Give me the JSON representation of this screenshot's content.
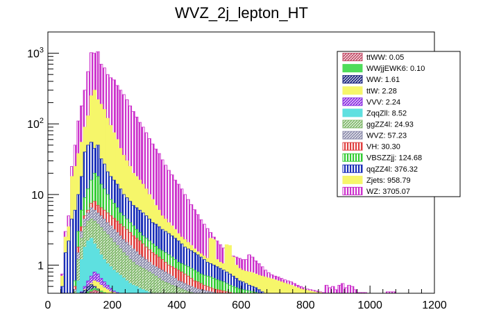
{
  "chart_data": {
    "type": "bar",
    "stacked": true,
    "histogram": true,
    "title": "WVZ_2j_lepton_HT",
    "xlabel": "",
    "ylabel": "",
    "xlim": [
      0,
      1200
    ],
    "ylim": [
      0.4,
      2000
    ],
    "ylog": true,
    "bin_width": 10,
    "legend_position": "top-right",
    "xticks": [
      "0",
      "200",
      "400",
      "600",
      "800",
      "1000",
      "1200"
    ],
    "yticks": [
      {
        "value": 1,
        "label": "1"
      },
      {
        "value": 10,
        "label": "10"
      },
      {
        "value": 100,
        "label": "10^2"
      },
      {
        "value": 1000,
        "label": "10^3"
      }
    ],
    "legend": [
      {
        "label": "ttWW: 0.05",
        "color": "#c44e6a",
        "pattern": "hatch"
      },
      {
        "label": "WWjjEWK6: 0.10",
        "color": "#4fdc5a",
        "pattern": "solid"
      },
      {
        "label": "WW: 1.61",
        "color": "#1a237e",
        "pattern": "hatch"
      },
      {
        "label": "ttW: 2.28",
        "color": "#f6f66a",
        "pattern": "solid"
      },
      {
        "label": "VVV: 2.24",
        "color": "#8a2be2",
        "pattern": "hatch"
      },
      {
        "label": "ZqqZll: 8.52",
        "color": "#5ee0e0",
        "pattern": "solid"
      },
      {
        "label": "ggZZ4l: 24.93",
        "color": "#7fb86a",
        "pattern": "hatch"
      },
      {
        "label": "WVZ: 57.23",
        "color": "#8c8cac",
        "pattern": "hatch"
      },
      {
        "label": "VH: 30.30",
        "color": "#e04040",
        "pattern": "vlines"
      },
      {
        "label": "VBSZZjj: 124.68",
        "color": "#33cc33",
        "pattern": "vlines"
      },
      {
        "label": "qqZZ4l: 376.32",
        "color": "#1a2fb8",
        "pattern": "vlines"
      },
      {
        "label": "Zjets: 958.79",
        "color": "#f6f66a",
        "pattern": "solid"
      },
      {
        "label": "WZ: 3705.07",
        "color": "#cc33cc",
        "pattern": "vlines"
      }
    ],
    "series": [
      {
        "name": "WZ",
        "color": "#cc33cc",
        "pattern": "vlines",
        "x": [
          40,
          50,
          60,
          70,
          80,
          90,
          100,
          110,
          120,
          130,
          140,
          150,
          160,
          170,
          180,
          190,
          200,
          210,
          220,
          230,
          240,
          250,
          260,
          270,
          280,
          290,
          300,
          310,
          320,
          330,
          340,
          350,
          360,
          370,
          380,
          390,
          400,
          410,
          420,
          430,
          440,
          450,
          460,
          470,
          480,
          490,
          500,
          510,
          520,
          530,
          540,
          550,
          560,
          570,
          580,
          590,
          600,
          610,
          620,
          630,
          640,
          650,
          660,
          670,
          680,
          690,
          700,
          710,
          720,
          730,
          740,
          750,
          760,
          770,
          780,
          790,
          800,
          810,
          820,
          830,
          840,
          850,
          860,
          870,
          880,
          890,
          900,
          910,
          920,
          930,
          940,
          950,
          960,
          970,
          980,
          990,
          1000,
          1010,
          1020,
          1030,
          1040,
          1050,
          1060,
          1070,
          1080
        ],
        "values": [
          0.75,
          3,
          5,
          25,
          50,
          110,
          180,
          300,
          550,
          1020,
          1000,
          1050,
          700,
          620,
          500,
          450,
          420,
          350,
          300,
          260,
          220,
          180,
          150,
          125,
          105,
          90,
          75,
          62,
          52,
          44,
          38,
          31,
          26,
          22,
          19,
          16,
          14,
          12,
          10,
          8.5,
          7.2,
          6.1,
          5.2,
          4.4,
          3.8,
          3.3,
          2.9,
          2.5,
          2.2,
          1.95,
          1.75,
          1.55,
          1.45,
          1.35,
          1.3,
          1.25,
          1.2,
          1.2,
          1.4,
          1.3,
          1.15,
          1.05,
          0.95,
          0.85,
          0.78,
          0.73,
          0.7,
          0.68,
          0.65,
          0.62,
          0.6,
          0.58,
          0.55,
          0.52,
          0.5,
          0.48,
          0.46,
          0.45,
          0.44,
          0.43,
          0.42,
          0.41,
          0.52,
          0.48,
          0.5,
          0.45,
          0.52,
          0.55,
          0.48,
          0.52,
          0.5,
          0.45,
          0.41,
          0.41,
          0.41,
          0,
          0,
          0,
          0.4,
          0,
          0,
          0.42,
          0.42,
          0.42,
          0
        ]
      },
      {
        "name": "Zjets",
        "color": "#f6f66a",
        "pattern": "solid",
        "x": [
          40,
          50,
          60,
          70,
          80,
          90,
          100,
          110,
          120,
          130,
          140,
          150,
          160,
          170,
          180,
          190,
          200,
          210,
          220,
          230,
          240,
          250,
          260,
          270,
          280,
          290,
          300,
          310,
          320,
          330,
          340,
          350,
          360,
          370,
          380,
          390,
          400,
          410,
          420,
          430,
          440,
          450,
          460,
          470,
          480,
          490,
          500,
          510,
          520,
          530,
          540,
          550,
          560,
          570,
          580,
          590,
          600,
          610,
          620,
          630,
          640,
          650,
          660,
          670,
          680,
          690,
          700,
          710,
          720,
          730,
          740,
          750,
          760,
          770,
          780,
          790,
          800,
          810,
          820,
          830,
          840,
          850,
          860,
          870
        ],
        "values": [
          0.7,
          2.5,
          3.5,
          18,
          25,
          38,
          55,
          90,
          130,
          250,
          300,
          220,
          190,
          160,
          120,
          95,
          75,
          60,
          45,
          36,
          30,
          25,
          20,
          18,
          16,
          14,
          12,
          10,
          8.5,
          7,
          6,
          5,
          4.5,
          4,
          3.6,
          3.2,
          2.8,
          2.5,
          2.3,
          2.1,
          1.9,
          1.7,
          1.55,
          1.45,
          1.35,
          1.25,
          2.4,
          2.3,
          1.2,
          1.1,
          1.05,
          1.95,
          1.9,
          1.3,
          1.0,
          0.9,
          0.85,
          0.82,
          0.8,
          0.78,
          0.75,
          0.72,
          0.7,
          0.68,
          0.66,
          0.64,
          0.62,
          0.6,
          0.58,
          0.56,
          0.54,
          0.52,
          0.5,
          0.48,
          0.46,
          0.45,
          0.44,
          0.43,
          0.42,
          0.41,
          0.41,
          0.4,
          0.4,
          0
        ]
      },
      {
        "name": "qqZZ4l",
        "color": "#1a2fb8",
        "pattern": "vlines",
        "x": [
          40,
          50,
          60,
          70,
          80,
          90,
          100,
          110,
          120,
          130,
          140,
          150,
          160,
          170,
          180,
          190,
          200,
          210,
          220,
          230,
          240,
          250,
          260,
          270,
          280,
          290,
          300,
          310,
          320,
          330,
          340,
          350,
          360,
          370,
          380,
          390,
          400,
          410,
          420,
          430,
          440,
          450,
          460,
          470,
          480,
          490,
          500,
          510,
          520,
          530,
          540,
          550,
          560,
          570,
          580,
          590,
          600,
          610,
          620,
          630,
          640,
          650,
          660
        ],
        "values": [
          0.5,
          1.5,
          2.2,
          4.5,
          6,
          10,
          18,
          40,
          50,
          55,
          45,
          50,
          32,
          27,
          21,
          18,
          16,
          14,
          12,
          10,
          9,
          8,
          7,
          6.5,
          6,
          5.5,
          5,
          4.5,
          4,
          3.8,
          3.5,
          3.2,
          3,
          2.8,
          2.6,
          2.4,
          2.2,
          2,
          1.8,
          1.7,
          1.6,
          1.5,
          1.4,
          1.3,
          1.2,
          1.1,
          1.05,
          1.0,
          0.95,
          0.9,
          0.85,
          0.8,
          0.75,
          0.7,
          0.65,
          0.6,
          0.58,
          0.55,
          0.52,
          0.5,
          0.48,
          0.45,
          0.42
        ]
      },
      {
        "name": "VBSZZjj",
        "color": "#33cc33",
        "pattern": "vlines",
        "x": [
          80,
          90,
          100,
          110,
          120,
          130,
          140,
          150,
          160,
          170,
          180,
          190,
          200,
          210,
          220,
          230,
          240,
          250,
          260,
          270,
          280,
          290,
          300,
          310,
          320,
          330,
          340,
          350,
          360,
          370,
          380,
          390,
          400,
          410,
          420,
          430,
          440,
          450,
          460,
          470,
          480,
          490,
          500,
          510,
          520,
          530,
          540,
          550,
          560,
          570,
          580,
          590,
          600,
          610,
          620,
          630,
          640
        ],
        "values": [
          0.6,
          3,
          6,
          9,
          12,
          16,
          20,
          18,
          14,
          12,
          10,
          8.5,
          7.5,
          6.5,
          5.5,
          5,
          4.5,
          4,
          3.6,
          3.2,
          2.9,
          2.6,
          2.4,
          2.2,
          2,
          1.85,
          1.7,
          1.6,
          1.5,
          1.4,
          1.3,
          1.2,
          1.1,
          1.05,
          1.0,
          0.95,
          0.9,
          0.85,
          0.8,
          0.75,
          0.72,
          0.7,
          0.68,
          0.65,
          0.62,
          0.6,
          0.58,
          0.55,
          0.52,
          0.5,
          0.48,
          0.46,
          0.45,
          0.44,
          0.43,
          0.42,
          0.41
        ]
      },
      {
        "name": "VH",
        "color": "#e04040",
        "pattern": "vlines",
        "x": [
          80,
          90,
          100,
          110,
          120,
          130,
          140,
          150,
          160,
          170,
          180,
          190,
          200,
          210,
          220,
          230,
          240,
          250,
          260,
          270,
          280,
          290,
          300,
          310,
          320,
          330,
          340,
          350,
          360,
          370,
          380,
          390,
          400,
          410,
          420,
          430,
          440,
          450,
          460,
          470,
          480,
          490,
          500,
          510,
          520,
          530,
          540,
          550,
          560
        ],
        "values": [
          0.5,
          1.8,
          3.5,
          5,
          6,
          7.5,
          8,
          7,
          6.5,
          6,
          5.5,
          5,
          4.6,
          4.2,
          3.8,
          3.5,
          3.2,
          2.9,
          2.6,
          2.4,
          2.2,
          2.0,
          1.8,
          1.65,
          1.5,
          1.4,
          1.3,
          1.2,
          1.1,
          1.0,
          0.95,
          0.9,
          0.85,
          0.8,
          0.75,
          0.7,
          0.65,
          0.6,
          0.58,
          0.55,
          0.52,
          0.5,
          0.48,
          0.46,
          0.45,
          0.44,
          0.43,
          0.42,
          0.41
        ]
      },
      {
        "name": "WVZ",
        "color": "#8c8cac",
        "pattern": "hatch",
        "x": [
          80,
          90,
          100,
          110,
          120,
          130,
          140,
          150,
          160,
          170,
          180,
          190,
          200,
          210,
          220,
          230,
          240,
          250,
          260,
          270,
          280,
          290,
          300,
          310,
          320,
          330,
          340,
          350,
          360,
          370,
          380,
          390,
          400,
          410,
          420,
          430,
          440,
          450,
          460,
          470,
          480,
          490,
          500,
          510,
          520
        ],
        "values": [
          0.45,
          1.5,
          3,
          4.5,
          5.5,
          6.5,
          6,
          5.5,
          5,
          4.5,
          4,
          3.6,
          3.2,
          2.9,
          2.6,
          2.3,
          2.1,
          1.9,
          1.7,
          1.55,
          1.4,
          1.3,
          1.2,
          1.1,
          1.0,
          0.95,
          0.9,
          0.85,
          0.8,
          0.75,
          0.7,
          0.65,
          0.6,
          0.58,
          0.55,
          0.52,
          0.5,
          0.48,
          0.46,
          0.45,
          0.44,
          0.43,
          0.42,
          0.41,
          0.4
        ]
      },
      {
        "name": "ggZZ4l",
        "color": "#7fb86a",
        "pattern": "hatch",
        "x": [
          80,
          90,
          100,
          110,
          120,
          130,
          140,
          150,
          160,
          170,
          180,
          190,
          200,
          210,
          220,
          230,
          240,
          250,
          260,
          270,
          280,
          290,
          300,
          310,
          320,
          330,
          340,
          350,
          360,
          370,
          380,
          390,
          400,
          410,
          420,
          430,
          440
        ],
        "values": [
          0.42,
          1.2,
          2.4,
          3.5,
          4.2,
          4.5,
          4.2,
          3.8,
          3.4,
          3.0,
          2.7,
          2.4,
          2.1,
          1.9,
          1.7,
          1.5,
          1.35,
          1.2,
          1.1,
          1.0,
          0.95,
          0.9,
          0.85,
          0.8,
          0.75,
          0.7,
          0.65,
          0.6,
          0.57,
          0.55,
          0.52,
          0.5,
          0.48,
          0.46,
          0.44,
          0.42,
          0.41
        ]
      },
      {
        "name": "ZqqZll",
        "color": "#5ee0e0",
        "pattern": "solid",
        "x": [
          90,
          100,
          110,
          120,
          130,
          140,
          150,
          160,
          170,
          180,
          190,
          200,
          210,
          220,
          230,
          240,
          250,
          260,
          270,
          280,
          290,
          300,
          310
        ],
        "values": [
          0.6,
          1.2,
          1.8,
          2.2,
          2.4,
          2.0,
          1.7,
          1.4,
          1.2,
          1.05,
          0.95,
          0.85,
          0.78,
          0.72,
          0.66,
          0.6,
          0.55,
          0.52,
          0.5,
          0.47,
          0.45,
          0.43,
          0.41
        ]
      },
      {
        "name": "VVV",
        "color": "#8a2be2",
        "pattern": "hatch",
        "x": [
          100,
          110,
          120,
          130,
          140,
          150,
          160,
          170,
          180,
          190,
          200,
          210
        ],
        "values": [
          0.42,
          0.5,
          0.6,
          0.7,
          0.8,
          0.75,
          0.65,
          0.58,
          0.52,
          0.47,
          0.43,
          0.41
        ]
      },
      {
        "name": "ttW",
        "color": "#f6f66a",
        "pattern": "solid",
        "x": [
          100,
          110,
          120,
          130,
          140,
          150,
          160,
          170,
          180,
          190,
          200
        ],
        "values": [
          0.41,
          0.45,
          0.5,
          0.55,
          0.6,
          0.57,
          0.52,
          0.48,
          0.45,
          0.42,
          0.41
        ]
      },
      {
        "name": "WW",
        "color": "#1a237e",
        "pattern": "hatch",
        "x": [
          100,
          110,
          120,
          130,
          140,
          150,
          160,
          170
        ],
        "values": [
          0.41,
          0.44,
          0.5,
          0.53,
          0.5,
          0.46,
          0.43,
          0.41
        ]
      },
      {
        "name": "WWjjEWK6",
        "color": "#4fdc5a",
        "pattern": "solid",
        "x": [
          120,
          130,
          140,
          150,
          160,
          170
        ],
        "values": [
          0.42,
          0.45,
          0.47,
          0.45,
          0.43,
          0.41
        ]
      },
      {
        "name": "ttWW",
        "color": "#c44e6a",
        "pattern": "hatch",
        "x": [
          130,
          140,
          150,
          160
        ],
        "values": [
          0.42,
          0.44,
          0.43,
          0.41
        ]
      }
    ]
  }
}
